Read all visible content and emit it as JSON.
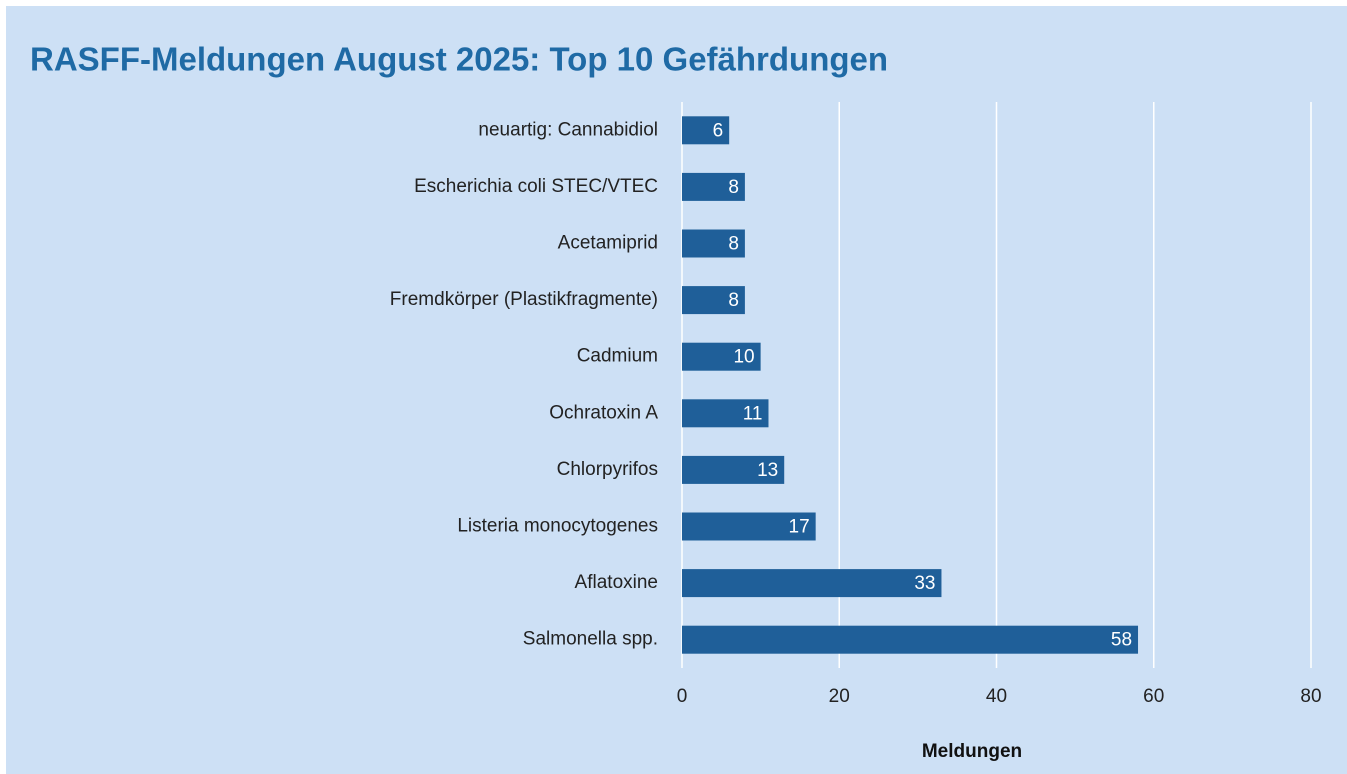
{
  "chart_data": {
    "type": "bar",
    "orientation": "horizontal",
    "title": "RASFF-Meldungen August 2025: Top 10 Gefährdungen",
    "xlabel": "Meldungen",
    "categories": [
      "neuartig: Cannabidiol",
      "Escherichia coli STEC/VTEC",
      "Acetamiprid",
      "Fremdkörper (Plastikfragmente)",
      "Cadmium",
      "Ochratoxin A",
      "Chlorpyrifos",
      "Listeria monocytogenes",
      "Aflatoxine",
      "Salmonella spp."
    ],
    "values": [
      6,
      8,
      8,
      8,
      10,
      11,
      13,
      17,
      33,
      58
    ],
    "color": "#1f5f99",
    "xlim": [
      0,
      80
    ],
    "xticks": [
      0,
      20,
      40,
      60,
      80
    ],
    "grid": true
  }
}
